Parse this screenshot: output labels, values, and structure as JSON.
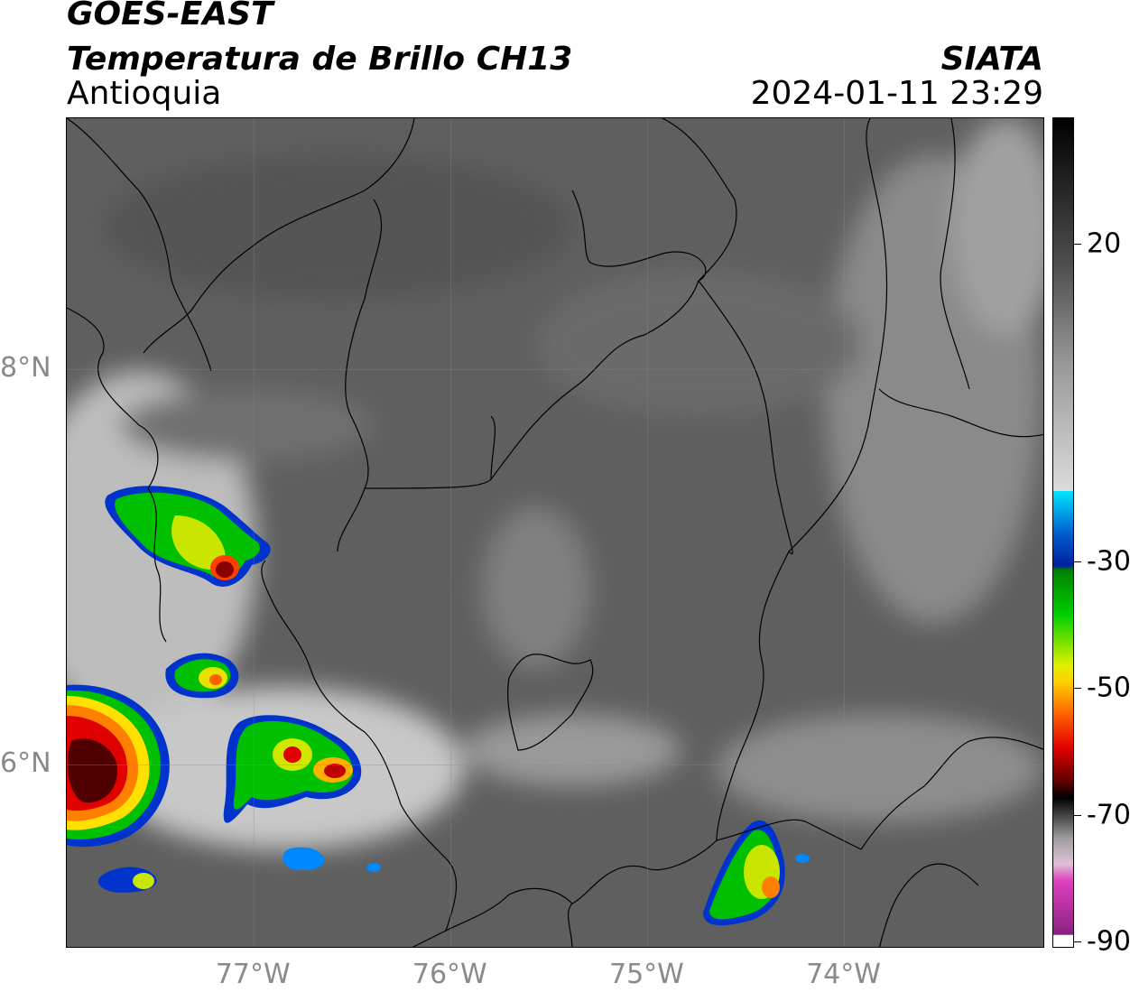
{
  "header": {
    "satellite": "GOES-EAST",
    "product": "Temperatura de Brillo CH13",
    "region": "Antioquia",
    "organization": "SIATA",
    "timestamp": "2024-01-11 23:29"
  },
  "map": {
    "lat_labels": [
      {
        "label": "8°N",
        "lat": 8
      },
      {
        "label": "6°N",
        "lat": 6
      }
    ],
    "lon_labels": [
      {
        "label": "77°W",
        "lon": -77
      },
      {
        "label": "76°W",
        "lon": -76
      },
      {
        "label": "75°W",
        "lon": -75
      },
      {
        "label": "74°W",
        "lon": -74
      }
    ],
    "lat_range": [
      5.07,
      9.27
    ],
    "lon_range": [
      -77.95,
      -72.98
    ],
    "background_color": "#5e5e5e"
  },
  "colorbar": {
    "ticks": [
      {
        "label": "20",
        "value": 20
      },
      {
        "label": "-30",
        "value": -30
      },
      {
        "label": "-50",
        "value": -50
      },
      {
        "label": "-70",
        "value": -70
      },
      {
        "label": "-90",
        "value": -90
      }
    ],
    "range": [
      -91,
      40
    ],
    "colors": {
      "cyan": "#00e5ff",
      "blue": "#0033cc",
      "green": "#00c000",
      "yellow": "#ffff00",
      "orange": "#ff8000",
      "red": "#e00000",
      "dark_red": "#400000",
      "magenta": "#e040c0",
      "purple": "#8a2080"
    }
  }
}
